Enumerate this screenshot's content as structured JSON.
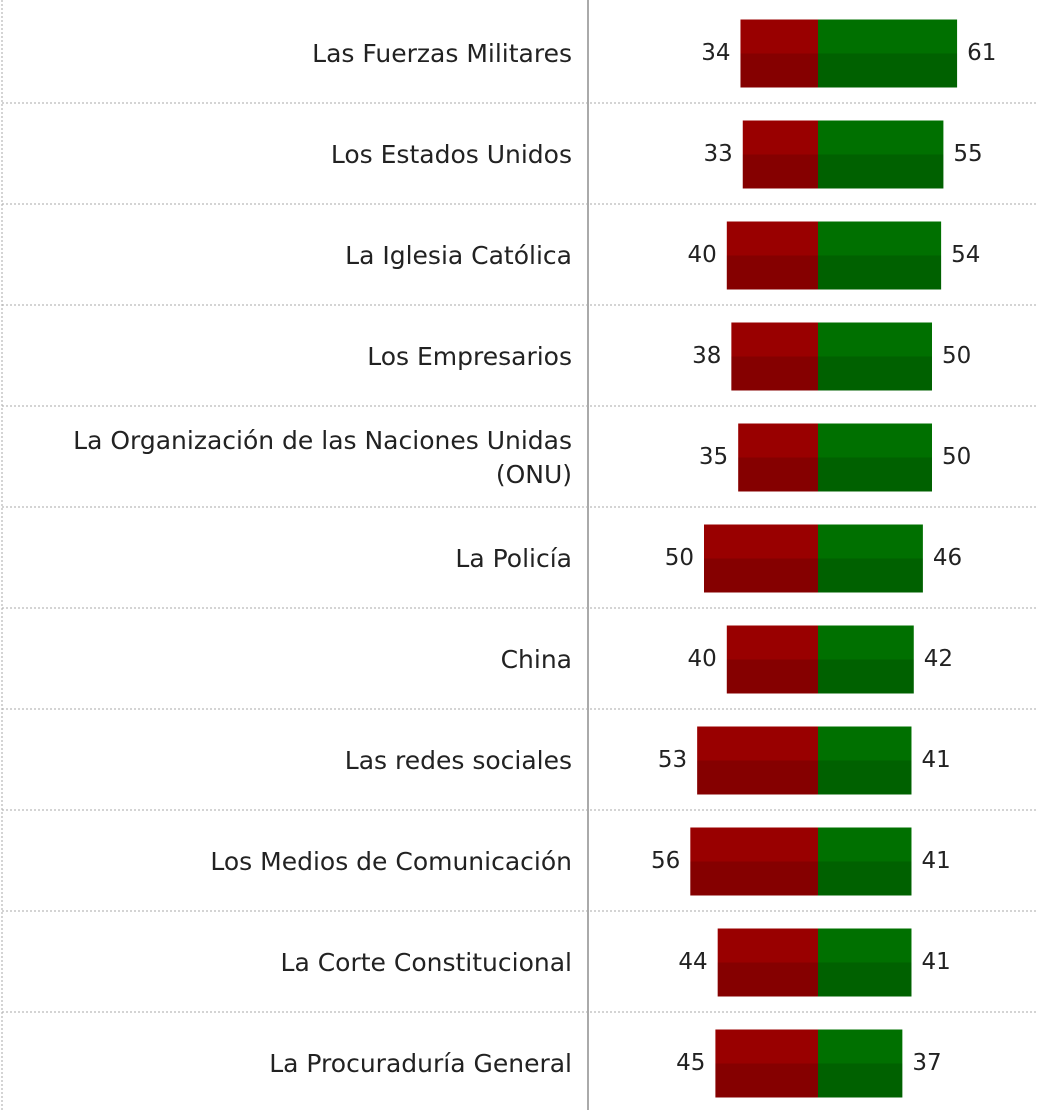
{
  "chart_data": {
    "type": "bar",
    "categories": [
      "Las Fuerzas Militares",
      "Los Estados Unidos",
      "La Iglesia Católica",
      "Los Empresarios",
      "La Organización de las Naciones Unidas (ONU)",
      "La Policía",
      "China",
      "Las redes sociales",
      "Los Medios de Comunicación",
      "La Corte Constitucional",
      "La Procuraduría General"
    ],
    "series": [
      {
        "color": "#990000",
        "values": [
          34,
          33,
          40,
          38,
          35,
          50,
          40,
          53,
          56,
          44,
          45
        ]
      },
      {
        "color": "#007000",
        "values": [
          61,
          55,
          54,
          50,
          50,
          46,
          42,
          41,
          41,
          41,
          37
        ]
      }
    ]
  }
}
